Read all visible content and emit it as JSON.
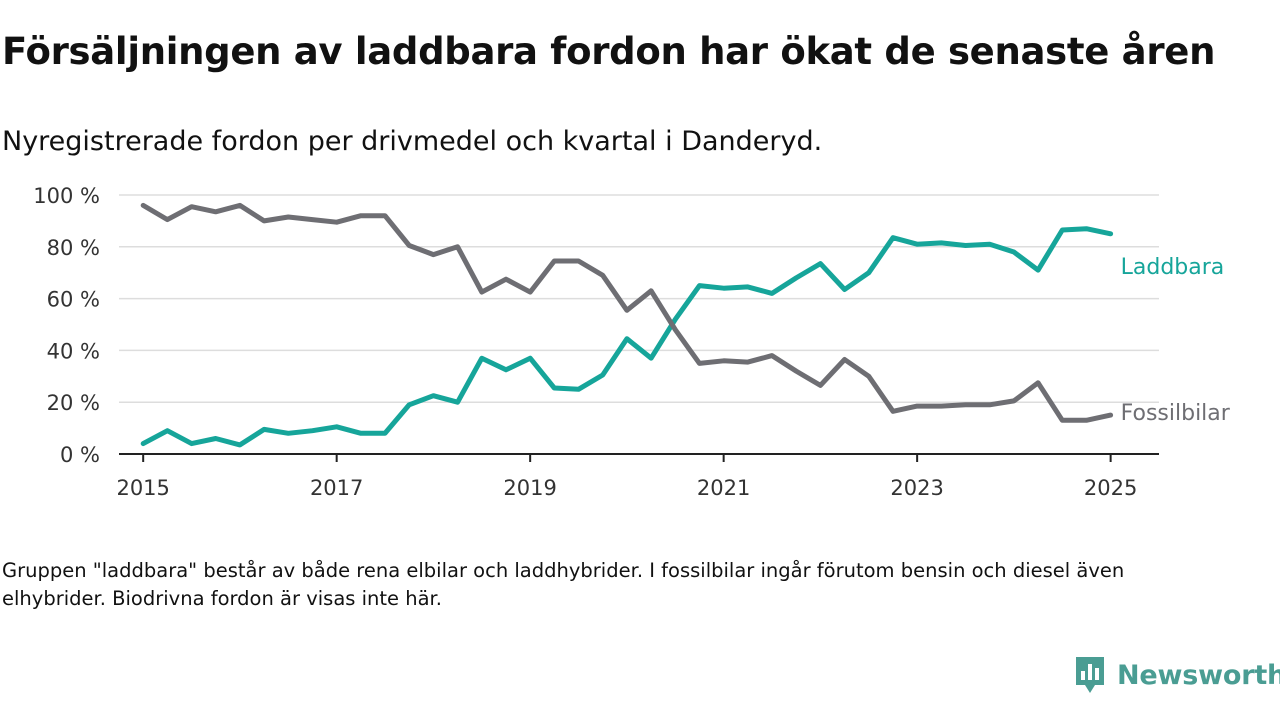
{
  "title": "Försäljningen av laddbara fordon har ökat de senaste åren",
  "subtitle": "Nyregistrerade fordon per drivmedel och kvartal i Danderyd.",
  "footnote": "Gruppen \"laddbara\" består av både rena elbilar och laddhybrider. I fossilbilar ingår förutom bensin och diesel även elhybrider. Biodrivna fordon är visas inte här.",
  "brand": {
    "name": "Newsworthy",
    "icon": "newsworthy-logo-icon",
    "color": "#4a9d93"
  },
  "chart_data": {
    "type": "line",
    "x": [
      2015.0,
      2015.25,
      2015.5,
      2015.75,
      2016.0,
      2016.25,
      2016.5,
      2016.75,
      2017.0,
      2017.25,
      2017.5,
      2017.75,
      2018.0,
      2018.25,
      2018.5,
      2018.75,
      2019.0,
      2019.25,
      2019.5,
      2019.75,
      2020.0,
      2020.25,
      2020.5,
      2020.75,
      2021.0,
      2021.25,
      2021.5,
      2021.75,
      2022.0,
      2022.25,
      2022.5,
      2022.75,
      2023.0,
      2023.25,
      2023.5,
      2023.75,
      2024.0,
      2024.25,
      2024.5,
      2024.75,
      2025.0
    ],
    "series": [
      {
        "name": "Laddbara",
        "color": "#16a59a",
        "values": [
          4,
          9,
          4,
          6,
          3.5,
          9.5,
          8,
          9,
          10.5,
          8,
          8,
          19,
          22.5,
          20,
          37,
          32.5,
          37,
          25.5,
          25,
          30.5,
          44.5,
          37,
          52,
          65,
          64,
          64.5,
          62,
          68,
          73.5,
          63.5,
          70,
          83.5,
          81,
          81.5,
          80.5,
          81,
          78,
          71,
          86.5,
          87,
          85
        ]
      },
      {
        "name": "Fossilbilar",
        "color": "#6e6e73",
        "values": [
          96,
          90.5,
          95.5,
          93.5,
          96,
          90,
          91.5,
          90.5,
          89.5,
          92,
          92,
          80.5,
          77,
          80,
          62.5,
          67.5,
          62.5,
          74.5,
          74.5,
          69,
          55.5,
          63,
          48,
          35,
          36,
          35.5,
          38,
          32,
          26.5,
          36.5,
          30,
          16.5,
          18.5,
          18.5,
          19,
          19,
          20.5,
          27.5,
          13,
          13,
          15
        ]
      }
    ],
    "ylim": [
      0,
      100
    ],
    "yticks": [
      0,
      20,
      40,
      60,
      80,
      100
    ],
    "ytick_labels": [
      "0 %",
      "20 %",
      "40 %",
      "60 %",
      "80 %",
      "100 %"
    ],
    "xlim": [
      2014.75,
      2025.5
    ],
    "xticks": [
      2015,
      2017,
      2019,
      2021,
      2023,
      2025
    ],
    "xtick_labels": [
      "2015",
      "2017",
      "2019",
      "2021",
      "2023",
      "2025"
    ],
    "grid": "horizontal",
    "legend": "direct-labels-right",
    "gridColor": "#dddddd",
    "axisColor": "#222222"
  }
}
